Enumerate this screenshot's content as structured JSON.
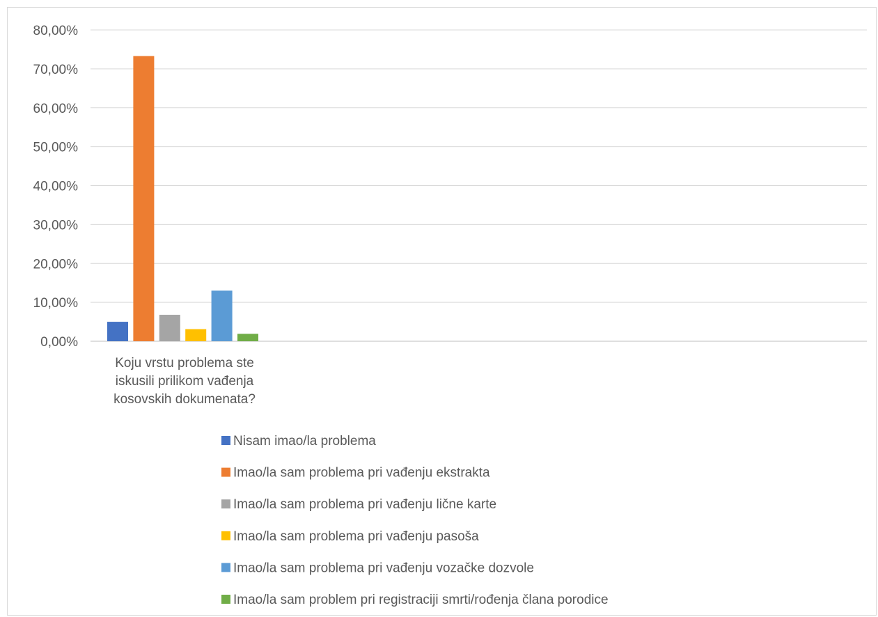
{
  "chart_data": {
    "type": "bar",
    "category_label_lines": [
      "Koju vrstu problema ste",
      "iskusili prilikom vađenja",
      "kosovskih dokumenata?"
    ],
    "series": [
      {
        "name": "Nisam imao/la problema",
        "value": 0.05,
        "color": "#4472C4"
      },
      {
        "name": "Imao/la sam problema pri vađenju ekstrakta",
        "value": 0.733,
        "color": "#ED7D31"
      },
      {
        "name": "Imao/la sam problema pri vađenju lične karte",
        "value": 0.068,
        "color": "#A5A5A5"
      },
      {
        "name": "Imao/la sam problema pri vađenju pasoša",
        "value": 0.031,
        "color": "#FFC000"
      },
      {
        "name": "Imao/la sam problema pri vađenju vozačke dozvole",
        "value": 0.13,
        "color": "#5B9BD5"
      },
      {
        "name": "Imao/la sam problem pri registraciji smrti/rođenja člana porodice",
        "value": 0.019,
        "color": "#70AD47"
      }
    ],
    "y_ticks": [
      "0,00%",
      "10,00%",
      "20,00%",
      "30,00%",
      "40,00%",
      "50,00%",
      "60,00%",
      "70,00%",
      "80,00%"
    ],
    "ylim": [
      0,
      0.8
    ],
    "grid": true,
    "legend_position": "bottom"
  }
}
